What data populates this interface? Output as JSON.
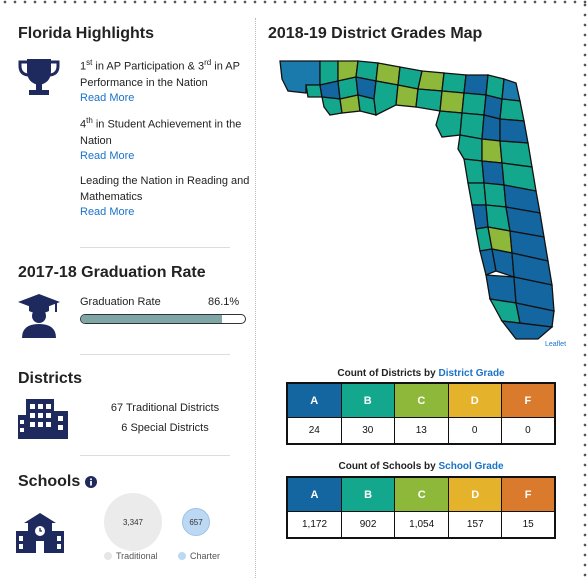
{
  "highlights": {
    "title": "Florida Highlights",
    "items": [
      {
        "pre": "1",
        "pre_sup": "st",
        "mid": " in AP Participation & 3",
        "mid_sup": "rd",
        "post": " in AP Performance in the Nation",
        "link": "Read More"
      },
      {
        "pre": "4",
        "pre_sup": "th",
        "mid": " in Student Achievement in the Nation",
        "mid_sup": "",
        "post": "",
        "link": "Read More"
      },
      {
        "pre": "Leading the Nation in Reading and Mathematics",
        "pre_sup": "",
        "mid": "",
        "mid_sup": "",
        "post": "",
        "link": "Read More"
      }
    ]
  },
  "graduation": {
    "title": "2017-18 Graduation Rate",
    "label": "Graduation Rate",
    "value_text": "86.1%",
    "fill_fraction": 0.861
  },
  "districts": {
    "title": "Districts",
    "traditional": "67 Traditional Districts",
    "special": "6 Special Districts"
  },
  "schools": {
    "title": "Schools",
    "info_icon": "info-icon",
    "traditional_count": "3,347",
    "charter_count": "657",
    "legend_traditional": "Traditional",
    "legend_charter": "Charter"
  },
  "map": {
    "title": "2018-19 District Grades Map",
    "attribution": "Leaflet"
  },
  "district_grades": {
    "title_prefix": "Count of Districts by ",
    "title_link": "District Grade",
    "grades": [
      "A",
      "B",
      "C",
      "D",
      "F"
    ],
    "counts": [
      "24",
      "30",
      "13",
      "0",
      "0"
    ]
  },
  "school_grades": {
    "title_prefix": "Count of Schools by ",
    "title_link": "School Grade",
    "grades": [
      "A",
      "B",
      "C",
      "D",
      "F"
    ],
    "counts": [
      "1,172",
      "902",
      "1,054",
      "157",
      "15"
    ]
  },
  "colors": {
    "grade_a": "#1366a0",
    "grade_b": "#13a88e",
    "grade_c": "#8eb83a",
    "grade_d": "#e5b22b",
    "grade_f": "#d97a2c",
    "navy_icon": "#1e2a5e",
    "link": "#1a73c9"
  }
}
